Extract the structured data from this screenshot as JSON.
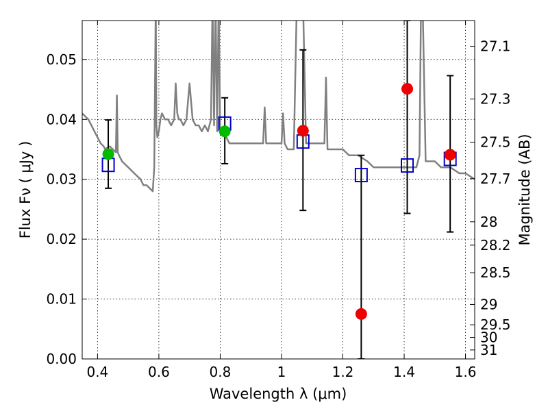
{
  "chart_data": {
    "type": "scatter",
    "title": "",
    "xlabel": "Wavelength  λ (μm)",
    "ylabel": "Flux  Fν  ( μJy )",
    "ylabel_right": "Magnitude (AB)",
    "xlim": [
      0.35,
      1.63
    ],
    "ylim": [
      0.0,
      0.0565
    ],
    "grid": true,
    "x_ticks": [
      0.4,
      0.6,
      0.8,
      1.0,
      1.2,
      1.4,
      1.6
    ],
    "x_tick_labels": [
      "0.4",
      "0.6",
      "0.8",
      "1",
      "1.2",
      "1.4",
      "1.6"
    ],
    "y_ticks": [
      0.0,
      0.01,
      0.02,
      0.03,
      0.04,
      0.05
    ],
    "y_tick_labels": [
      "0.00",
      "0.01",
      "0.02",
      "0.03",
      "0.04",
      "0.05"
    ],
    "right_ticks": [
      {
        "label": "27.1",
        "flux": 0.0522
      },
      {
        "label": "27.3",
        "flux": 0.0434
      },
      {
        "label": "27.5",
        "flux": 0.0362
      },
      {
        "label": "27.7",
        "flux": 0.0301
      },
      {
        "label": "28",
        "flux": 0.0229
      },
      {
        "label": "28.2",
        "flux": 0.019
      },
      {
        "label": "28.5",
        "flux": 0.0144
      },
      {
        "label": "29",
        "flux": 0.0091
      },
      {
        "label": "29.5",
        "flux": 0.0057
      },
      {
        "label": "30",
        "flux": 0.0036
      },
      {
        "label": "31",
        "flux": 0.0015
      }
    ],
    "series": [
      {
        "marker": "square-open",
        "color": "#0000cc",
        "points": [
          {
            "x": 0.435,
            "y": 0.0324
          },
          {
            "x": 0.815,
            "y": 0.0393
          },
          {
            "x": 1.07,
            "y": 0.0363
          },
          {
            "x": 1.26,
            "y": 0.0307
          },
          {
            "x": 1.41,
            "y": 0.0323
          },
          {
            "x": 1.55,
            "y": 0.0334
          }
        ]
      },
      {
        "marker": "circle",
        "color": "#00bb00",
        "points": [
          {
            "x": 0.435,
            "y": 0.0342,
            "err_low": 0.0285,
            "err_high": 0.0399
          },
          {
            "x": 0.815,
            "y": 0.038,
            "err_low": 0.0326,
            "err_high": 0.0436
          }
        ]
      },
      {
        "marker": "circle",
        "color": "#ee0000",
        "points": [
          {
            "x": 1.07,
            "y": 0.0381,
            "err_low": 0.0248,
            "err_high": 0.0516
          },
          {
            "x": 1.26,
            "y": 0.0075,
            "err_low": 0.0,
            "err_high": 0.034
          },
          {
            "x": 1.41,
            "y": 0.0451,
            "err_low": 0.0243,
            "err_high": 0.0565
          },
          {
            "x": 1.55,
            "y": 0.0341,
            "err_low": 0.0212,
            "err_high": 0.0473
          }
        ]
      }
    ],
    "spectrum": {
      "color": "#808080",
      "x": [
        0.35,
        0.36,
        0.37,
        0.38,
        0.39,
        0.4,
        0.41,
        0.42,
        0.425,
        0.43,
        0.44,
        0.45,
        0.46,
        0.463,
        0.466,
        0.47,
        0.48,
        0.5,
        0.52,
        0.54,
        0.55,
        0.56,
        0.57,
        0.58,
        0.585,
        0.59,
        0.592,
        0.595,
        0.6,
        0.605,
        0.61,
        0.62,
        0.63,
        0.64,
        0.65,
        0.655,
        0.66,
        0.665,
        0.67,
        0.68,
        0.69,
        0.7,
        0.71,
        0.72,
        0.73,
        0.74,
        0.75,
        0.76,
        0.77,
        0.775,
        0.78,
        0.785,
        0.79,
        0.795,
        0.8,
        0.81,
        0.82,
        0.83,
        0.84,
        0.86,
        0.88,
        0.9,
        0.92,
        0.94,
        0.945,
        0.95,
        0.96,
        0.98,
        1.0,
        1.005,
        1.01,
        1.02,
        1.03,
        1.04,
        1.05,
        1.06,
        1.07,
        1.08,
        1.1,
        1.12,
        1.14,
        1.145,
        1.15,
        1.16,
        1.18,
        1.2,
        1.22,
        1.25,
        1.28,
        1.3,
        1.32,
        1.35,
        1.38,
        1.4,
        1.42,
        1.44,
        1.45,
        1.455,
        1.46,
        1.47,
        1.48,
        1.5,
        1.52,
        1.55,
        1.58,
        1.6,
        1.63
      ],
      "y": [
        0.041,
        0.0405,
        0.04,
        0.039,
        0.038,
        0.037,
        0.036,
        0.0355,
        0.035,
        0.0352,
        0.0355,
        0.035,
        0.0345,
        0.044,
        0.0345,
        0.034,
        0.033,
        0.032,
        0.031,
        0.03,
        0.029,
        0.029,
        0.0285,
        0.028,
        0.032,
        0.06,
        0.039,
        0.037,
        0.038,
        0.04,
        0.041,
        0.04,
        0.04,
        0.039,
        0.04,
        0.046,
        0.041,
        0.04,
        0.04,
        0.039,
        0.04,
        0.046,
        0.04,
        0.039,
        0.039,
        0.038,
        0.039,
        0.038,
        0.04,
        0.06,
        0.039,
        0.06,
        0.038,
        0.06,
        0.038,
        0.038,
        0.037,
        0.036,
        0.036,
        0.036,
        0.036,
        0.036,
        0.036,
        0.036,
        0.042,
        0.036,
        0.036,
        0.036,
        0.036,
        0.041,
        0.036,
        0.035,
        0.035,
        0.035,
        0.06,
        0.06,
        0.06,
        0.036,
        0.036,
        0.036,
        0.036,
        0.047,
        0.035,
        0.035,
        0.035,
        0.035,
        0.034,
        0.034,
        0.033,
        0.032,
        0.032,
        0.032,
        0.032,
        0.032,
        0.032,
        0.032,
        0.034,
        0.06,
        0.06,
        0.033,
        0.033,
        0.033,
        0.032,
        0.032,
        0.031,
        0.031,
        0.03
      ]
    }
  }
}
